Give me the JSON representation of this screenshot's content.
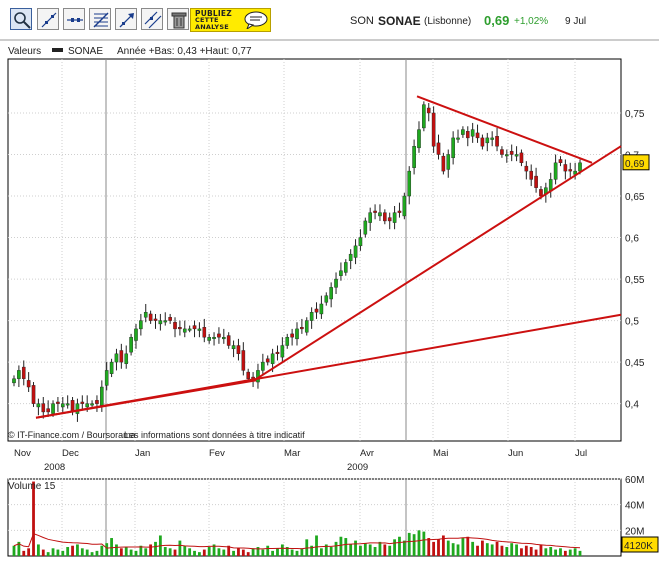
{
  "toolbar": {
    "buttons": [
      {
        "name": "zoom-tool-button",
        "icon": "magnifier-icon"
      },
      {
        "name": "draw-line-button",
        "icon": "diagonal-line-icon"
      },
      {
        "name": "horizontal-line-button",
        "icon": "horizontal-line-icon"
      },
      {
        "name": "fibonacci-button",
        "icon": "fibonacci-icon"
      },
      {
        "name": "trend-arrow-button",
        "icon": "arrow-line-icon"
      },
      {
        "name": "parallel-lines-button",
        "icon": "parallel-lines-icon"
      },
      {
        "name": "delete-button",
        "icon": "trash-icon"
      }
    ],
    "ad": {
      "line1": "PUBLIEZ",
      "line2": "CETTE",
      "line3": "ANALYSE"
    }
  },
  "quote": {
    "label": "SON",
    "name": "SONAE",
    "market": "(Lisbonne)",
    "price": "0,69",
    "change": "+1,02%",
    "date": "9 Jul",
    "price_color": "#2e9e2e"
  },
  "header": {
    "section": "Valeurs",
    "series": "SONAE",
    "range": "Année +Bas: 0,43 +Haut: 0,77"
  },
  "credit": {
    "source": "© IT-Finance.com / Boursorama",
    "notice": "Les informations sont données à titre indicatif"
  },
  "volume": {
    "title": "Volume 15"
  },
  "chart_data": [
    {
      "type": "candlestick",
      "title": "SONAE",
      "ylim": [
        0.355,
        0.815
      ],
      "y_ticks": [
        "0,75",
        "0,7",
        "0,65",
        "0,6",
        "0,55",
        "0,5",
        "0,45",
        "0,4"
      ],
      "y_tick_values": [
        0.75,
        0.7,
        0.65,
        0.6,
        0.55,
        0.5,
        0.45,
        0.4
      ],
      "x_ticks": [
        "Nov",
        "Dec",
        "Jan",
        "Fev",
        "Mar",
        "Avr",
        "Mai",
        "Jun",
        "Jul"
      ],
      "x_years": [
        "2008",
        "2009"
      ],
      "last_value_label": "0,69",
      "up_color": "#1fa81f",
      "down_color": "#c01010",
      "trendline_color": "#cc1010",
      "closes": [
        0.43,
        0.44,
        0.43,
        0.42,
        0.4,
        0.4,
        0.39,
        0.39,
        0.4,
        0.4,
        0.4,
        0.4,
        0.39,
        0.4,
        0.4,
        0.4,
        0.4,
        0.4,
        0.42,
        0.44,
        0.45,
        0.46,
        0.45,
        0.46,
        0.48,
        0.49,
        0.5,
        0.51,
        0.5,
        0.5,
        0.5,
        0.5,
        0.5,
        0.49,
        0.49,
        0.49,
        0.49,
        0.49,
        0.49,
        0.48,
        0.48,
        0.48,
        0.48,
        0.48,
        0.47,
        0.47,
        0.46,
        0.44,
        0.43,
        0.43,
        0.44,
        0.45,
        0.45,
        0.46,
        0.46,
        0.47,
        0.48,
        0.48,
        0.49,
        0.49,
        0.5,
        0.51,
        0.51,
        0.52,
        0.53,
        0.54,
        0.55,
        0.56,
        0.57,
        0.58,
        0.59,
        0.6,
        0.62,
        0.63,
        0.63,
        0.63,
        0.62,
        0.62,
        0.63,
        0.63,
        0.65,
        0.68,
        0.71,
        0.73,
        0.76,
        0.75,
        0.71,
        0.7,
        0.68,
        0.7,
        0.72,
        0.72,
        0.73,
        0.72,
        0.73,
        0.72,
        0.71,
        0.72,
        0.72,
        0.71,
        0.7,
        0.7,
        0.7,
        0.7,
        0.69,
        0.68,
        0.67,
        0.66,
        0.65,
        0.66,
        0.67,
        0.69,
        0.69,
        0.68,
        0.68,
        0.68,
        0.69
      ]
    },
    {
      "type": "bar",
      "title": "Volume 15",
      "ylim": [
        0,
        60
      ],
      "y_ticks": [
        "60M",
        "40M",
        "20M"
      ],
      "y_tick_values": [
        60,
        40,
        20
      ],
      "last_value_label": "4120K",
      "values": [
        8,
        11,
        4,
        6,
        58,
        9,
        5,
        3,
        6,
        5,
        4,
        7,
        8,
        9,
        6,
        5,
        3,
        4,
        8,
        10,
        14,
        9,
        6,
        7,
        5,
        4,
        8,
        6,
        9,
        11,
        16,
        7,
        6,
        5,
        12,
        8,
        6,
        4,
        3,
        5,
        7,
        9,
        6,
        5,
        8,
        4,
        6,
        5,
        3,
        6,
        7,
        5,
        8,
        4,
        6,
        9,
        7,
        5,
        4,
        6,
        13,
        8,
        16,
        6,
        9,
        7,
        11,
        15,
        14,
        9,
        12,
        8,
        10,
        9,
        7,
        11,
        9,
        8,
        13,
        15,
        12,
        18,
        17,
        20,
        19,
        14,
        11,
        13,
        16,
        12,
        10,
        9,
        14,
        15,
        11,
        8,
        12,
        10,
        9,
        11,
        8,
        7,
        10,
        9,
        6,
        8,
        7,
        5,
        9,
        6,
        7,
        5,
        6,
        4,
        5,
        6,
        4
      ]
    }
  ]
}
